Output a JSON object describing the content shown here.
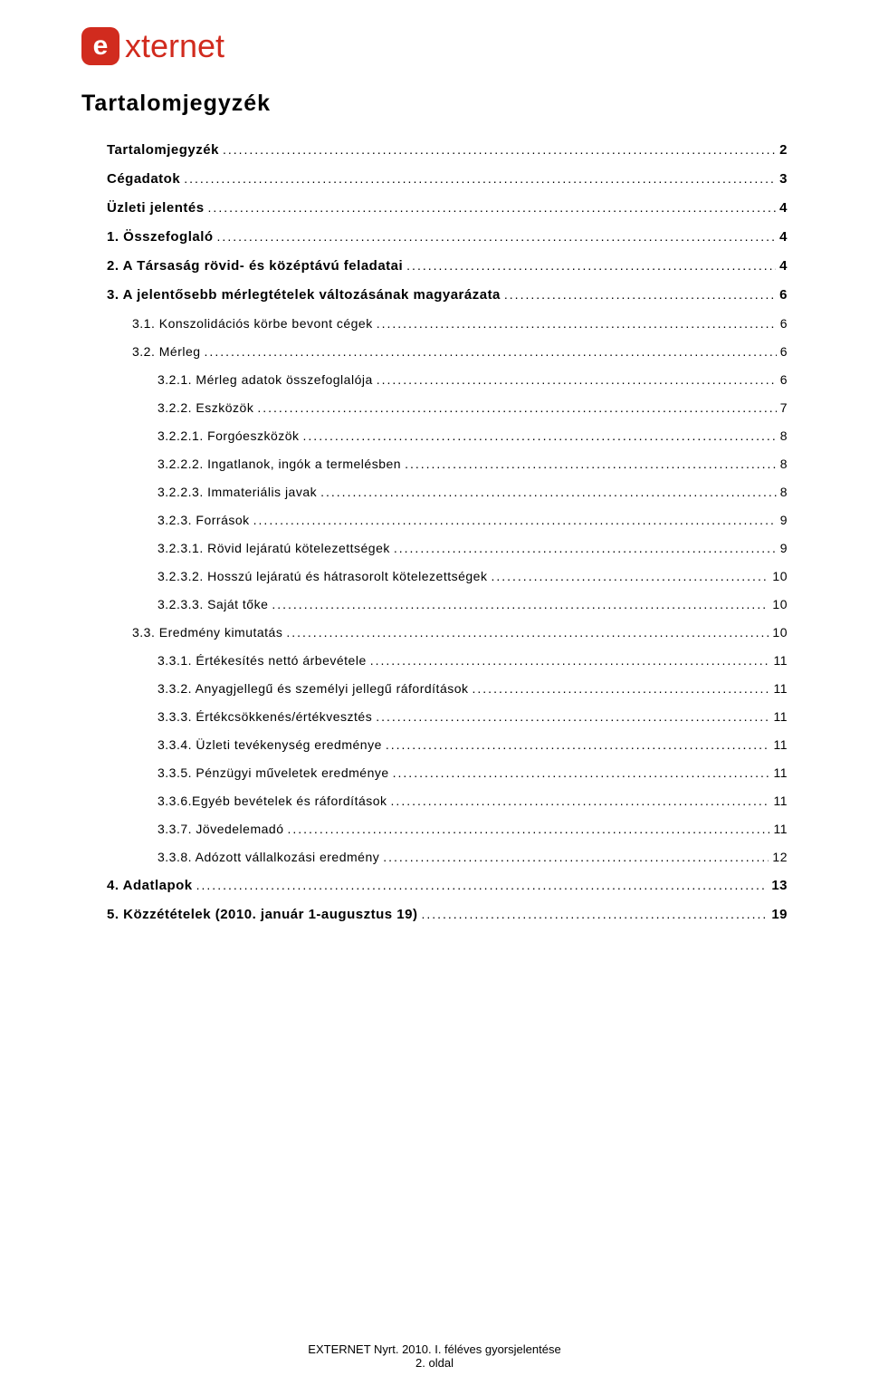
{
  "logo": {
    "glyph": "e",
    "brand": "xternet"
  },
  "title": "Tartalomjegyzék",
  "toc": [
    {
      "label": "Tartalomjegyzék",
      "page": "2",
      "indent": 1,
      "bold": true
    },
    {
      "label": "Cégadatok",
      "page": "3",
      "indent": 1,
      "bold": true
    },
    {
      "label": "Üzleti jelentés",
      "page": "4",
      "indent": 1,
      "bold": true
    },
    {
      "label": "1. Összefoglaló",
      "page": "4",
      "indent": 1,
      "bold": true
    },
    {
      "label": "2. A Társaság rövid- és középtávú feladatai",
      "page": "4",
      "indent": 1,
      "bold": true
    },
    {
      "label": "3. A jelentősebb mérlegtételek változásának magyarázata",
      "page": "6",
      "indent": 1,
      "bold": true
    },
    {
      "label": "3.1. Konszolidációs körbe bevont cégek",
      "page": "6",
      "indent": 2,
      "bold": false
    },
    {
      "label": "3.2. Mérleg",
      "page": "6",
      "indent": 2,
      "bold": false
    },
    {
      "label": "3.2.1. Mérleg adatok összefoglalója",
      "page": "6",
      "indent": 3,
      "bold": false
    },
    {
      "label": "3.2.2. Eszközök",
      "page": "7",
      "indent": 3,
      "bold": false
    },
    {
      "label": "3.2.2.1. Forgóeszközök",
      "page": "8",
      "indent": 3,
      "bold": false
    },
    {
      "label": "3.2.2.2. Ingatlanok, ingók a termelésben",
      "page": "8",
      "indent": 3,
      "bold": false
    },
    {
      "label": "3.2.2.3. Immateriális javak",
      "page": "8",
      "indent": 3,
      "bold": false
    },
    {
      "label": "3.2.3. Források",
      "page": "9",
      "indent": 3,
      "bold": false
    },
    {
      "label": "3.2.3.1. Rövid lejáratú kötelezettségek",
      "page": "9",
      "indent": 3,
      "bold": false
    },
    {
      "label": "3.2.3.2. Hosszú lejáratú és hátrasorolt kötelezettségek",
      "page": "10",
      "indent": 3,
      "bold": false
    },
    {
      "label": "3.2.3.3. Saját tőke",
      "page": "10",
      "indent": 3,
      "bold": false
    },
    {
      "label": "3.3. Eredmény kimutatás",
      "page": "10",
      "indent": 2,
      "bold": false
    },
    {
      "label": "3.3.1. Értékesítés nettó árbevétele",
      "page": "11",
      "indent": 3,
      "bold": false
    },
    {
      "label": "3.3.2. Anyagjellegű és személyi jellegű ráfordítások",
      "page": "11",
      "indent": 3,
      "bold": false
    },
    {
      "label": "3.3.3. Értékcsökkenés/értékvesztés",
      "page": "11",
      "indent": 3,
      "bold": false
    },
    {
      "label": "3.3.4. Üzleti tevékenység eredménye",
      "page": "11",
      "indent": 3,
      "bold": false
    },
    {
      "label": "3.3.5. Pénzügyi műveletek eredménye",
      "page": "11",
      "indent": 3,
      "bold": false
    },
    {
      "label": "3.3.6.Egyéb bevételek és ráfordítások",
      "page": "11",
      "indent": 3,
      "bold": false
    },
    {
      "label": "3.3.7. Jövedelemadó",
      "page": "11",
      "indent": 3,
      "bold": false
    },
    {
      "label": "3.3.8. Adózott vállalkozási eredmény",
      "page": "12",
      "indent": 3,
      "bold": false
    },
    {
      "label": "4. Adatlapok",
      "page": "13",
      "indent": 1,
      "bold": true
    },
    {
      "label": "5. Közzétételek (2010. január 1-augusztus 19)",
      "page": "19",
      "indent": 1,
      "bold": true
    }
  ],
  "footer": {
    "line1": "EXTERNET Nyrt. 2010. I. féléves gyorsjelentése",
    "line2": "2. oldal"
  },
  "colors": {
    "brand": "#d12b1e",
    "text": "#000000",
    "background": "#ffffff"
  }
}
